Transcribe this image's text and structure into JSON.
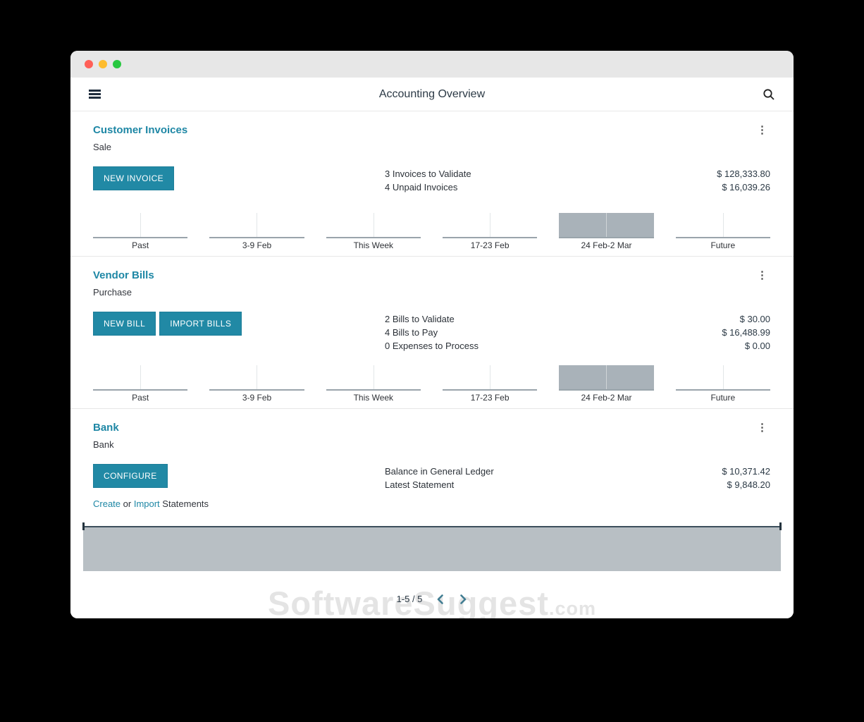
{
  "titlebar": {
    "traffic_lights": [
      "close",
      "minimize",
      "zoom"
    ]
  },
  "header": {
    "title": "Accounting Overview",
    "left_icon": "hamburger-menu-icon",
    "right_icon": "search-icon"
  },
  "cards": [
    {
      "title": "Customer Invoices",
      "subtitle": "Sale",
      "buttons": [
        {
          "label": "NEW INVOICE"
        }
      ],
      "stats": [
        {
          "label": "3 Invoices to Validate",
          "amount": "$ 128,333.80"
        },
        {
          "label": "4 Unpaid Invoices",
          "amount": "$ 16,039.26"
        }
      ],
      "menu_icon": "kebab-menu-icon",
      "chart_index": 0
    },
    {
      "title": "Vendor Bills",
      "subtitle": "Purchase",
      "buttons": [
        {
          "label": "NEW BILL"
        },
        {
          "label": "IMPORT BILLS"
        }
      ],
      "stats": [
        {
          "label": "2 Bills to Validate",
          "amount": "$ 30.00"
        },
        {
          "label": "4 Bills to Pay",
          "amount": "$ 16,488.99"
        },
        {
          "label": "0 Expenses to Process",
          "amount": "$ 0.00"
        }
      ],
      "menu_icon": "kebab-menu-icon",
      "chart_index": 1
    },
    {
      "title": "Bank",
      "subtitle": "Bank",
      "buttons": [
        {
          "label": "CONFIGURE"
        }
      ],
      "links_line": [
        {
          "text": "Create",
          "link": true
        },
        {
          "text": " or ",
          "link": false
        },
        {
          "text": "Import",
          "link": true
        },
        {
          "text": " Statements",
          "link": false
        }
      ],
      "stats": [
        {
          "label": "Balance in General Ledger",
          "amount": "$ 10,371.42"
        },
        {
          "label": "Latest Statement",
          "amount": "$ 9,848.20"
        }
      ],
      "menu_icon": "kebab-menu-icon",
      "chart_index": null
    }
  ],
  "chart_data": [
    {
      "type": "bar",
      "categories": [
        "Past",
        "3-9 Feb",
        "This Week",
        "17-23 Feb",
        "24 Feb-2 Mar",
        "Future"
      ],
      "values": [
        0,
        0,
        0,
        0,
        1,
        0
      ],
      "highlighted_category": "24 Feb-2 Mar",
      "ylim": [
        0,
        1
      ],
      "grid": false,
      "legend": "none"
    },
    {
      "type": "bar",
      "categories": [
        "Past",
        "3-9 Feb",
        "This Week",
        "17-23 Feb",
        "24 Feb-2 Mar",
        "Future"
      ],
      "values": [
        0,
        0,
        0,
        0,
        1,
        0
      ],
      "highlighted_category": "24 Feb-2 Mar",
      "ylim": [
        0,
        1
      ],
      "grid": false,
      "legend": "none"
    }
  ],
  "pager": {
    "counter": "1-5 / 5",
    "prev_icon": "chevron-left-icon",
    "next_icon": "chevron-right-icon"
  },
  "watermark": {
    "text": "SoftwareSuggest",
    "suffix": ".com"
  },
  "colors": {
    "accent_teal": "#1e87a5",
    "button_teal": "#2189a5",
    "bar_gray": "#a9b2b9",
    "selection_gray": "#b8bfc4",
    "selection_border": "#3d4f5c",
    "watermark_gray": "#e4e4e4",
    "titlebar_gray": "#e7e7e7"
  }
}
